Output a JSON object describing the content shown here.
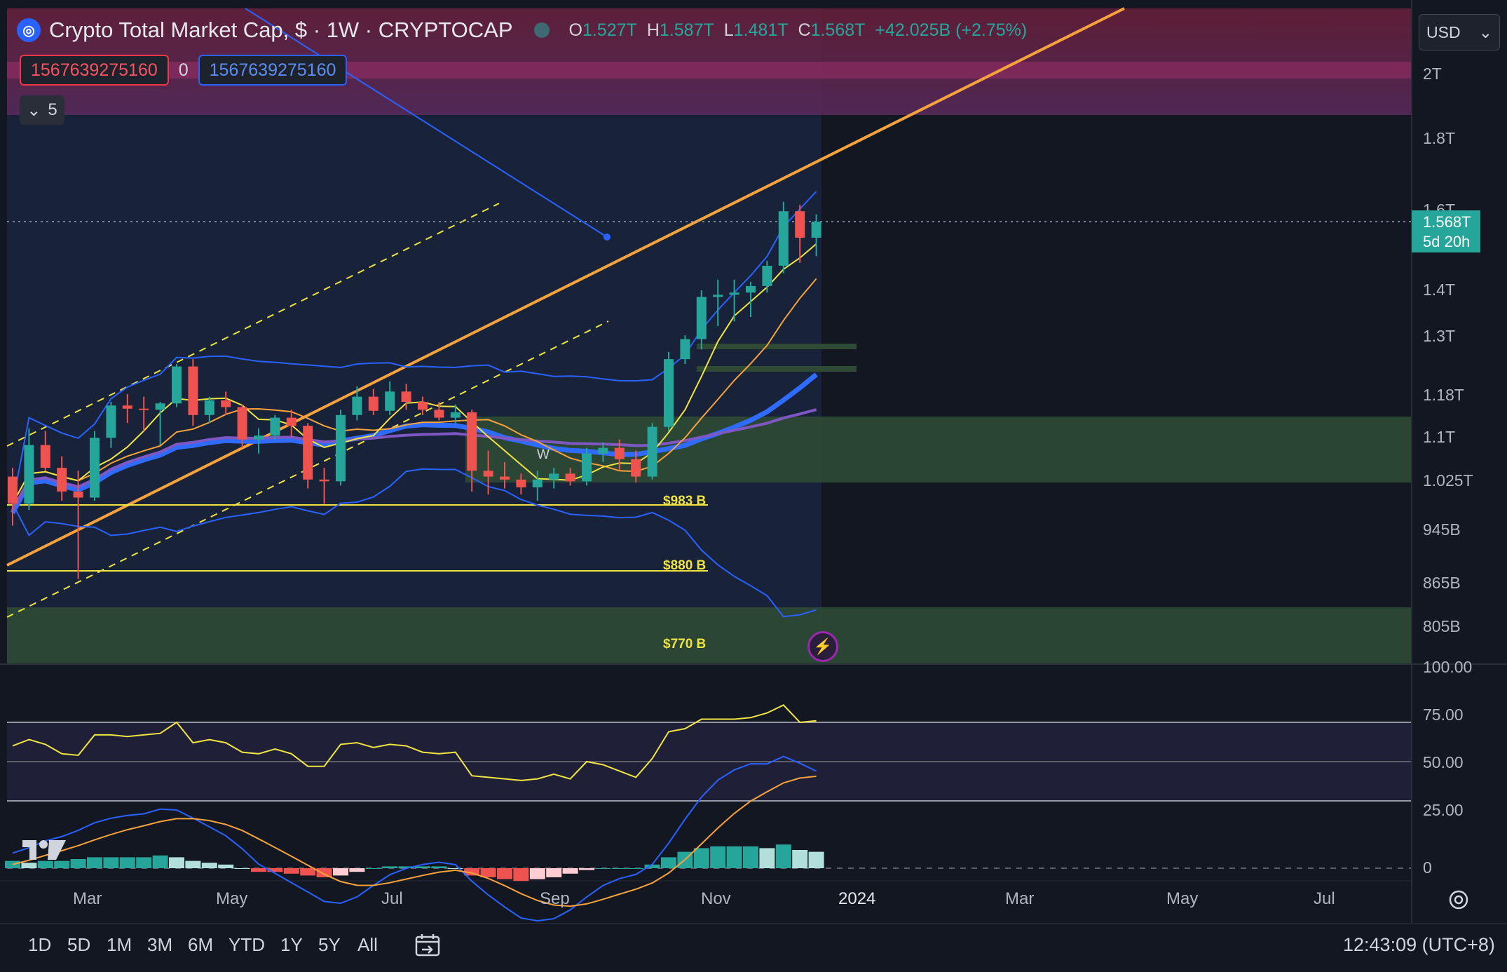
{
  "header": {
    "symbol_title": "Crypto Total Market Cap, $ · 1W · CRYPTOCAP",
    "ohlc": [
      {
        "k": "O",
        "v": "1.527T"
      },
      {
        "k": "H",
        "v": "1.587T"
      },
      {
        "k": "L",
        "v": "1.481T"
      },
      {
        "k": "C",
        "v": "1.568T"
      },
      {
        "k": "",
        "v": "+42.025B (+2.75%)"
      }
    ]
  },
  "inputs": {
    "left_value": "1567639275160",
    "middle": "0",
    "right_value": "1567639275160"
  },
  "collapse": {
    "count": "5"
  },
  "currency": {
    "label": "USD"
  },
  "price_axis": {
    "labels": [
      "2T",
      "1.8T",
      "1.6T",
      "1.4T",
      "1.3T",
      "1.18T",
      "1.1T",
      "1.025T",
      "945B",
      "865B",
      "805B"
    ],
    "last_price": "1.568T",
    "countdown": "5d 20h"
  },
  "rsi_axis": {
    "labels": [
      "100.00",
      "75.00",
      "50.00",
      "25.00"
    ]
  },
  "macd_axis": {
    "labels": [
      "0"
    ]
  },
  "levels": [
    {
      "label": "$983 B"
    },
    {
      "label": "$880 B"
    },
    {
      "label": "$770 B"
    }
  ],
  "pattern_label": "W",
  "time_axis": [
    "Mar",
    "May",
    "Jul",
    "Sep",
    "Nov",
    "2024",
    "Mar",
    "May",
    "Jul"
  ],
  "range_buttons": [
    "1D",
    "5D",
    "1M",
    "3M",
    "6M",
    "YTD",
    "1Y",
    "5Y",
    "All"
  ],
  "clock": "12:43:09 (UTC+8)",
  "colors": {
    "up": "#26a69a",
    "down": "#ef5350",
    "background": "#131722",
    "accent": "#2962ff"
  },
  "chart_data": {
    "type": "candlestick",
    "title": "Crypto Total Market Cap, $ · 1W · CRYPTOCAP",
    "interval": "1W",
    "scale": "log",
    "ylim": [
      770,
      2150
    ],
    "y_unit": "B",
    "x_ticks": [
      "Mar",
      "May",
      "Jul",
      "Sep",
      "Nov",
      "2024",
      "Mar",
      "May",
      "Jul"
    ],
    "candles": [
      {
        "o": 1030,
        "h": 1045,
        "l": 950,
        "c": 985
      },
      {
        "o": 985,
        "h": 1115,
        "l": 975,
        "c": 1085
      },
      {
        "o": 1085,
        "h": 1110,
        "l": 1040,
        "c": 1045
      },
      {
        "o": 1045,
        "h": 1065,
        "l": 990,
        "c": 1005
      },
      {
        "o": 1005,
        "h": 1040,
        "l": 870,
        "c": 995
      },
      {
        "o": 995,
        "h": 1110,
        "l": 990,
        "c": 1098
      },
      {
        "o": 1098,
        "h": 1165,
        "l": 1080,
        "c": 1158
      },
      {
        "o": 1158,
        "h": 1180,
        "l": 1125,
        "c": 1152
      },
      {
        "o": 1152,
        "h": 1175,
        "l": 1110,
        "c": 1150
      },
      {
        "o": 1150,
        "h": 1165,
        "l": 1085,
        "c": 1162
      },
      {
        "o": 1162,
        "h": 1240,
        "l": 1155,
        "c": 1235
      },
      {
        "o": 1235,
        "h": 1250,
        "l": 1120,
        "c": 1140
      },
      {
        "o": 1140,
        "h": 1175,
        "l": 1125,
        "c": 1168
      },
      {
        "o": 1168,
        "h": 1185,
        "l": 1140,
        "c": 1155
      },
      {
        "o": 1155,
        "h": 1160,
        "l": 1080,
        "c": 1095
      },
      {
        "o": 1095,
        "h": 1115,
        "l": 1070,
        "c": 1102
      },
      {
        "o": 1102,
        "h": 1140,
        "l": 1095,
        "c": 1135
      },
      {
        "o": 1135,
        "h": 1150,
        "l": 1100,
        "c": 1120
      },
      {
        "o": 1120,
        "h": 1125,
        "l": 1010,
        "c": 1025
      },
      {
        "o": 1025,
        "h": 1045,
        "l": 985,
        "c": 1022
      },
      {
        "o": 1022,
        "h": 1150,
        "l": 1015,
        "c": 1140
      },
      {
        "o": 1140,
        "h": 1195,
        "l": 1130,
        "c": 1175
      },
      {
        "o": 1175,
        "h": 1190,
        "l": 1140,
        "c": 1148
      },
      {
        "o": 1148,
        "h": 1205,
        "l": 1140,
        "c": 1185
      },
      {
        "o": 1185,
        "h": 1200,
        "l": 1150,
        "c": 1165
      },
      {
        "o": 1165,
        "h": 1175,
        "l": 1140,
        "c": 1150
      },
      {
        "o": 1150,
        "h": 1165,
        "l": 1130,
        "c": 1135
      },
      {
        "o": 1135,
        "h": 1160,
        "l": 1125,
        "c": 1145
      },
      {
        "o": 1145,
        "h": 1150,
        "l": 1005,
        "c": 1040
      },
      {
        "o": 1040,
        "h": 1075,
        "l": 1000,
        "c": 1030
      },
      {
        "o": 1030,
        "h": 1055,
        "l": 1010,
        "c": 1025
      },
      {
        "o": 1025,
        "h": 1035,
        "l": 1000,
        "c": 1012
      },
      {
        "o": 1012,
        "h": 1040,
        "l": 990,
        "c": 1025
      },
      {
        "o": 1025,
        "h": 1045,
        "l": 1010,
        "c": 1035
      },
      {
        "o": 1035,
        "h": 1045,
        "l": 1015,
        "c": 1022
      },
      {
        "o": 1022,
        "h": 1080,
        "l": 1015,
        "c": 1070
      },
      {
        "o": 1070,
        "h": 1090,
        "l": 1055,
        "c": 1080
      },
      {
        "o": 1080,
        "h": 1095,
        "l": 1040,
        "c": 1060
      },
      {
        "o": 1060,
        "h": 1075,
        "l": 1020,
        "c": 1030
      },
      {
        "o": 1030,
        "h": 1125,
        "l": 1025,
        "c": 1118
      },
      {
        "o": 1118,
        "h": 1265,
        "l": 1110,
        "c": 1250
      },
      {
        "o": 1250,
        "h": 1300,
        "l": 1240,
        "c": 1292
      },
      {
        "o": 1292,
        "h": 1400,
        "l": 1270,
        "c": 1385
      },
      {
        "o": 1385,
        "h": 1425,
        "l": 1320,
        "c": 1390
      },
      {
        "o": 1390,
        "h": 1425,
        "l": 1330,
        "c": 1395
      },
      {
        "o": 1395,
        "h": 1420,
        "l": 1340,
        "c": 1410
      },
      {
        "o": 1410,
        "h": 1470,
        "l": 1395,
        "c": 1458
      },
      {
        "o": 1458,
        "h": 1620,
        "l": 1440,
        "c": 1595
      },
      {
        "o": 1595,
        "h": 1612,
        "l": 1465,
        "c": 1527
      },
      {
        "o": 1527,
        "h": 1587,
        "l": 1481,
        "c": 1568
      }
    ],
    "horizontal_levels": [
      {
        "label": "$983 B",
        "value": 983
      },
      {
        "label": "$880 B",
        "value": 880
      },
      {
        "label": "$770 B",
        "value": 770
      }
    ],
    "rsi": {
      "axis_labels": [
        "100.00",
        "75.00",
        "50.00",
        "25.00"
      ],
      "values": [
        60,
        64,
        61,
        55,
        54,
        67,
        67,
        66,
        67,
        68,
        75,
        62,
        64,
        62,
        56,
        55,
        58,
        55,
        47,
        47,
        61,
        62,
        59,
        61,
        60,
        56,
        55,
        56,
        41,
        40,
        39,
        38,
        39,
        42,
        39,
        50,
        48,
        44,
        40,
        52,
        69,
        71,
        77,
        77,
        77,
        78,
        81,
        86,
        75,
        76
      ]
    },
    "macd": {
      "histogram": [
        4,
        3,
        4,
        4,
        5,
        6,
        6,
        6,
        6,
        7,
        6,
        4,
        3,
        2,
        0,
        -2,
        -2,
        -3,
        -4,
        -5,
        -4,
        -2,
        0,
        1,
        1,
        1,
        1,
        0,
        -4,
        -5,
        -6,
        -7,
        -6,
        -5,
        -3,
        -1,
        0,
        0,
        0,
        2,
        6,
        9,
        11,
        12,
        12,
        12,
        11,
        13,
        10,
        9
      ]
    }
  }
}
